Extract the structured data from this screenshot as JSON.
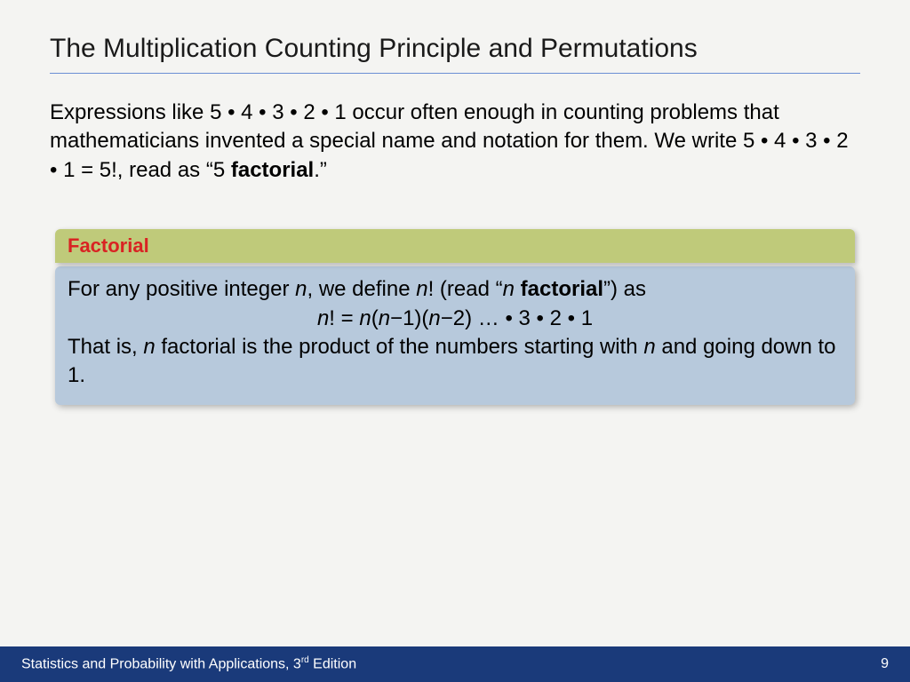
{
  "colors": {
    "title_rule": "#6a8fd4",
    "def_header_bg": "#bfca7a",
    "def_header_text": "#d92323",
    "def_body_bg": "#b7c9dc",
    "footer_bg": "#1a3a7a",
    "footer_text": "#ffffff"
  },
  "title": "The Multiplication Counting Principle and Permutations",
  "intro": {
    "part1": "Expressions like 5 • 4 • 3 • 2 • 1 occur often enough in counting problems that mathematicians invented a special name and notation for them. We write 5 • 4 • 3 • 2 • 1 = 5!, read as “5 ",
    "bold": "factorial",
    "part2": ".”"
  },
  "definition": {
    "header": "Factorial",
    "line1_a": "For any positive integer ",
    "line1_n1": "n",
    "line1_b": ", we define ",
    "line1_n2": "n",
    "line1_c": "! (read “",
    "line1_n3": "n",
    "line1_space": " ",
    "line1_bold": "factorial",
    "line1_d": "”) as",
    "formula_a": "n",
    "formula_b": "! = ",
    "formula_c": "n",
    "formula_d": "(",
    "formula_e": "n",
    "formula_f": "−1)(",
    "formula_g": "n",
    "formula_h": "−2) … • 3 • 2 • 1",
    "line3_a": "That is, ",
    "line3_n": "n",
    "line3_b": " factorial is the product of the numbers starting with ",
    "line3_n2": "n",
    "line3_c": " and going down to 1."
  },
  "footer": {
    "text_a": "Statistics and Probability with Applications, 3",
    "sup": "rd",
    "text_b": " Edition",
    "page": "9"
  }
}
